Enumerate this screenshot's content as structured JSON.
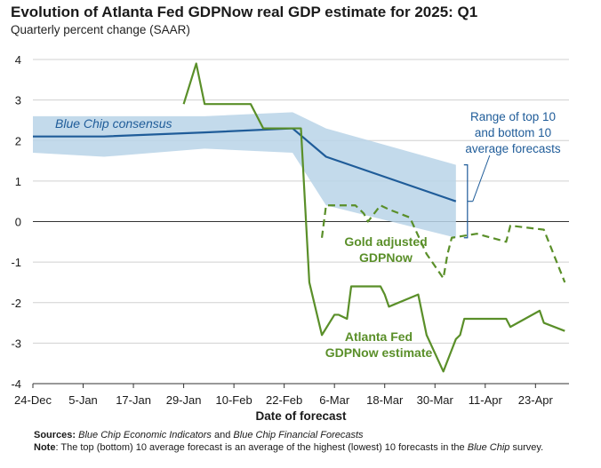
{
  "title": "Evolution of Atlanta Fed GDPNow real GDP estimate for 2025: Q1",
  "subtitle": "Quarterly percent change (SAAR)",
  "chart_data": {
    "type": "line",
    "xlabel": "Date of forecast",
    "ylabel": "",
    "ylim": [
      -4,
      4
    ],
    "xlim": [
      "2024-12-24",
      "2025-05-01"
    ],
    "yticks": [
      4,
      3,
      2,
      1,
      0,
      -1,
      -2,
      -3,
      -4
    ],
    "xticks": [
      {
        "date": "2024-12-24",
        "label": "24-Dec"
      },
      {
        "date": "2025-01-05",
        "label": "5-Jan"
      },
      {
        "date": "2025-01-17",
        "label": "17-Jan"
      },
      {
        "date": "2025-01-29",
        "label": "29-Jan"
      },
      {
        "date": "2025-02-10",
        "label": "10-Feb"
      },
      {
        "date": "2025-02-22",
        "label": "22-Feb"
      },
      {
        "date": "2025-03-06",
        "label": "6-Mar"
      },
      {
        "date": "2025-03-18",
        "label": "18-Mar"
      },
      {
        "date": "2025-03-30",
        "label": "30-Mar"
      },
      {
        "date": "2025-04-11",
        "label": "11-Apr"
      },
      {
        "date": "2025-04-23",
        "label": "23-Apr"
      }
    ],
    "grid": "horizontal",
    "colors": {
      "blue_chip": "#1f5c99",
      "band": "#b9d4e8",
      "gdpnow": "#5a8f29",
      "grid": "#d0d0d0",
      "zero_line": "#333333"
    },
    "series": [
      {
        "name": "Range of top 10 and bottom 10 average forecasts",
        "style": "band",
        "x": [
          "2024-12-24",
          "2025-01-10",
          "2025-02-03",
          "2025-02-24",
          "2025-03-04",
          "2025-04-04"
        ],
        "upper": [
          2.6,
          2.6,
          2.6,
          2.7,
          2.3,
          1.4
        ],
        "lower": [
          1.7,
          1.6,
          1.8,
          1.7,
          0.4,
          -0.4
        ]
      },
      {
        "name": "Blue Chip consensus",
        "style": "solid",
        "x": [
          "2024-12-24",
          "2025-01-10",
          "2025-02-03",
          "2025-02-24",
          "2025-03-04",
          "2025-04-04"
        ],
        "y": [
          2.1,
          2.1,
          2.2,
          2.3,
          1.6,
          0.5
        ]
      },
      {
        "name": "Atlanta Fed GDPNow estimate",
        "style": "solid",
        "x": [
          "2025-01-29",
          "2025-02-01",
          "2025-02-03",
          "2025-02-07",
          "2025-02-14",
          "2025-02-17",
          "2025-02-26",
          "2025-02-28",
          "2025-03-03",
          "2025-03-06",
          "2025-03-07",
          "2025-03-09",
          "2025-03-10",
          "2025-03-17",
          "2025-03-18",
          "2025-03-19",
          "2025-03-26",
          "2025-03-28",
          "2025-04-01",
          "2025-04-04",
          "2025-04-05",
          "2025-04-06",
          "2025-04-09",
          "2025-04-16",
          "2025-04-17",
          "2025-04-24",
          "2025-04-25",
          "2025-04-30"
        ],
        "y": [
          2.9,
          3.9,
          2.9,
          2.9,
          2.9,
          2.3,
          2.3,
          -1.5,
          -2.8,
          -2.3,
          -2.3,
          -2.4,
          -1.6,
          -1.6,
          -1.8,
          -2.1,
          -1.8,
          -2.8,
          -3.7,
          -2.9,
          -2.8,
          -2.4,
          -2.4,
          -2.4,
          -2.6,
          -2.2,
          -2.5,
          -2.7
        ]
      },
      {
        "name": "Gold adjusted GDPNow",
        "style": "dashed",
        "x": [
          "2025-03-03",
          "2025-03-04",
          "2025-03-11",
          "2025-03-13",
          "2025-03-14",
          "2025-03-17",
          "2025-03-19",
          "2025-03-24",
          "2025-03-28",
          "2025-04-01",
          "2025-04-02",
          "2025-04-03",
          "2025-04-09",
          "2025-04-16",
          "2025-04-17",
          "2025-04-25",
          "2025-04-30"
        ],
        "y": [
          -0.4,
          0.4,
          0.4,
          0.2,
          0.0,
          0.4,
          0.3,
          0.1,
          -0.8,
          -1.4,
          -0.8,
          -0.4,
          -0.3,
          -0.5,
          -0.1,
          -0.2,
          -1.5
        ]
      }
    ],
    "annotations": {
      "blue_chip": "Blue Chip consensus",
      "range": [
        "Range of top 10",
        "and bottom 10",
        "average forecasts"
      ],
      "gold": [
        "Gold adjusted",
        "GDPNow"
      ],
      "gdpnow": [
        "Atlanta Fed",
        "GDPNow estimate"
      ]
    }
  },
  "footnote": {
    "sources_label": "Sources:",
    "sources_italic_1": "Blue Chip Economic Indicators",
    "sources_mid": "and",
    "sources_italic_2": "Blue Chip Financial Forecasts",
    "note_label": "Note",
    "note_text": ": The top (bottom) 10 average forecast is an average of the highest (lowest) 10 forecasts in the",
    "note_italic": "Blue Chip",
    "note_end": "survey."
  }
}
